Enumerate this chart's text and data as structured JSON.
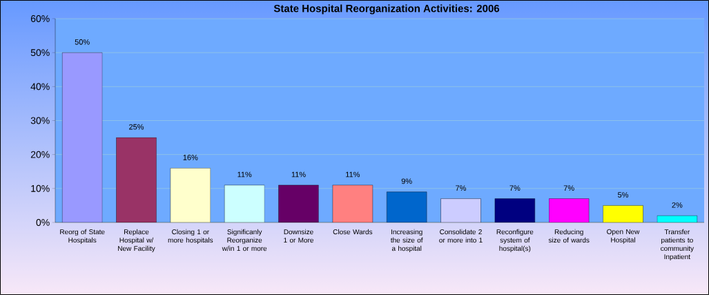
{
  "chart_data": {
    "type": "bar",
    "title": "State Hospital Reorganization Activities: 2006",
    "categories": [
      "Reorg of State Hospitals",
      "Replace Hospital w/ New Facility",
      "Closing 1 or more hospitals",
      "Significanly Reorganize w/in 1 or more",
      "Downsize 1 or More",
      "Close Wards",
      "Increasing the size of a hospital",
      "Consolidate 2 or more into 1",
      "Reconfigure system of hospital(s)",
      "Reducing size of wards",
      "Open New Hospital",
      "Transfer patients to community Inpatient"
    ],
    "values": [
      50,
      25,
      16,
      11,
      11,
      11,
      9,
      7,
      7,
      7,
      5,
      2
    ],
    "colors": [
      "#9999ff",
      "#993366",
      "#ffffcc",
      "#ccffff",
      "#660066",
      "#ff8080",
      "#0066cc",
      "#ccccff",
      "#000080",
      "#ff00ff",
      "#ffff00",
      "#00ffff"
    ],
    "ylim": [
      0,
      60
    ],
    "yticks": [
      {
        "value": 0,
        "label": "0%"
      },
      {
        "value": 10,
        "label": "10%"
      },
      {
        "value": 20,
        "label": "20%"
      },
      {
        "value": 30,
        "label": "30%"
      },
      {
        "value": 40,
        "label": "40%"
      },
      {
        "value": 50,
        "label": "50%"
      },
      {
        "value": 60,
        "label": "60%"
      }
    ],
    "value_labels": [
      "50%",
      "25%",
      "16%",
      "11%",
      "11%",
      "11%",
      "9%",
      "7%",
      "7%",
      "7%",
      "5%",
      "2%"
    ],
    "grid": "y"
  }
}
